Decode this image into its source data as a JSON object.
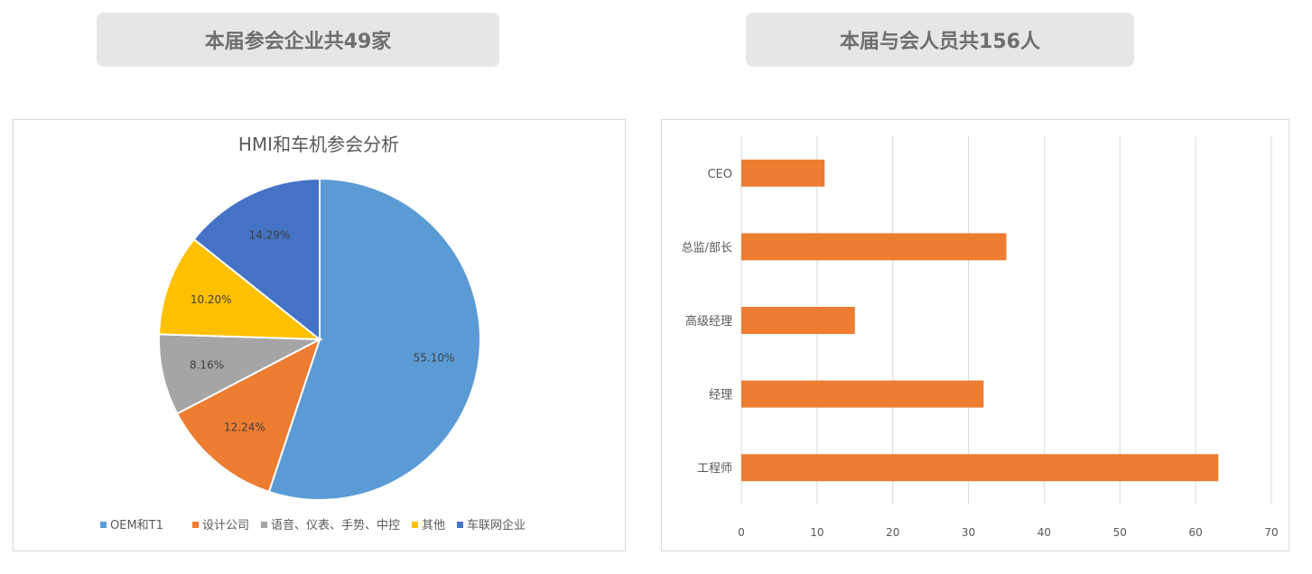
{
  "banners": {
    "left": "本届参会企业共49家",
    "right": "本届与会人员共156人"
  },
  "colors": {
    "blue_light": "#5b9bd5",
    "orange": "#ed7d31",
    "gray": "#a5a5a5",
    "yellow": "#ffc000",
    "blue_dark": "#4472c4",
    "bar": "#ed7d31"
  },
  "chart_data": [
    {
      "type": "pie",
      "title": "HMI和车机参会分析",
      "legend_position": "bottom",
      "slices": [
        {
          "label": "OEM和T1",
          "value": 55.1,
          "display": "55.10%",
          "color": "#5b9bd5"
        },
        {
          "label": "设计公司",
          "value": 12.24,
          "display": "12.24%",
          "color": "#ed7d31"
        },
        {
          "label": "语音、仪表、手势、中控",
          "value": 8.16,
          "display": "8.16%",
          "color": "#a5a5a5"
        },
        {
          "label": "其他",
          "value": 10.2,
          "display": "10.20%",
          "color": "#ffc000"
        },
        {
          "label": "车联网企业",
          "value": 14.29,
          "display": "14.29%",
          "color": "#4472c4"
        }
      ]
    },
    {
      "type": "bar",
      "orientation": "horizontal",
      "categories": [
        "CEO",
        "总监/部长",
        "高级经理",
        "经理",
        "工程师"
      ],
      "values": [
        11,
        35,
        15,
        32,
        63
      ],
      "xlim": [
        0,
        70
      ],
      "xticks": [
        0,
        10,
        20,
        30,
        40,
        50,
        60,
        70
      ],
      "grid": true,
      "color": "#ed7d31"
    }
  ]
}
